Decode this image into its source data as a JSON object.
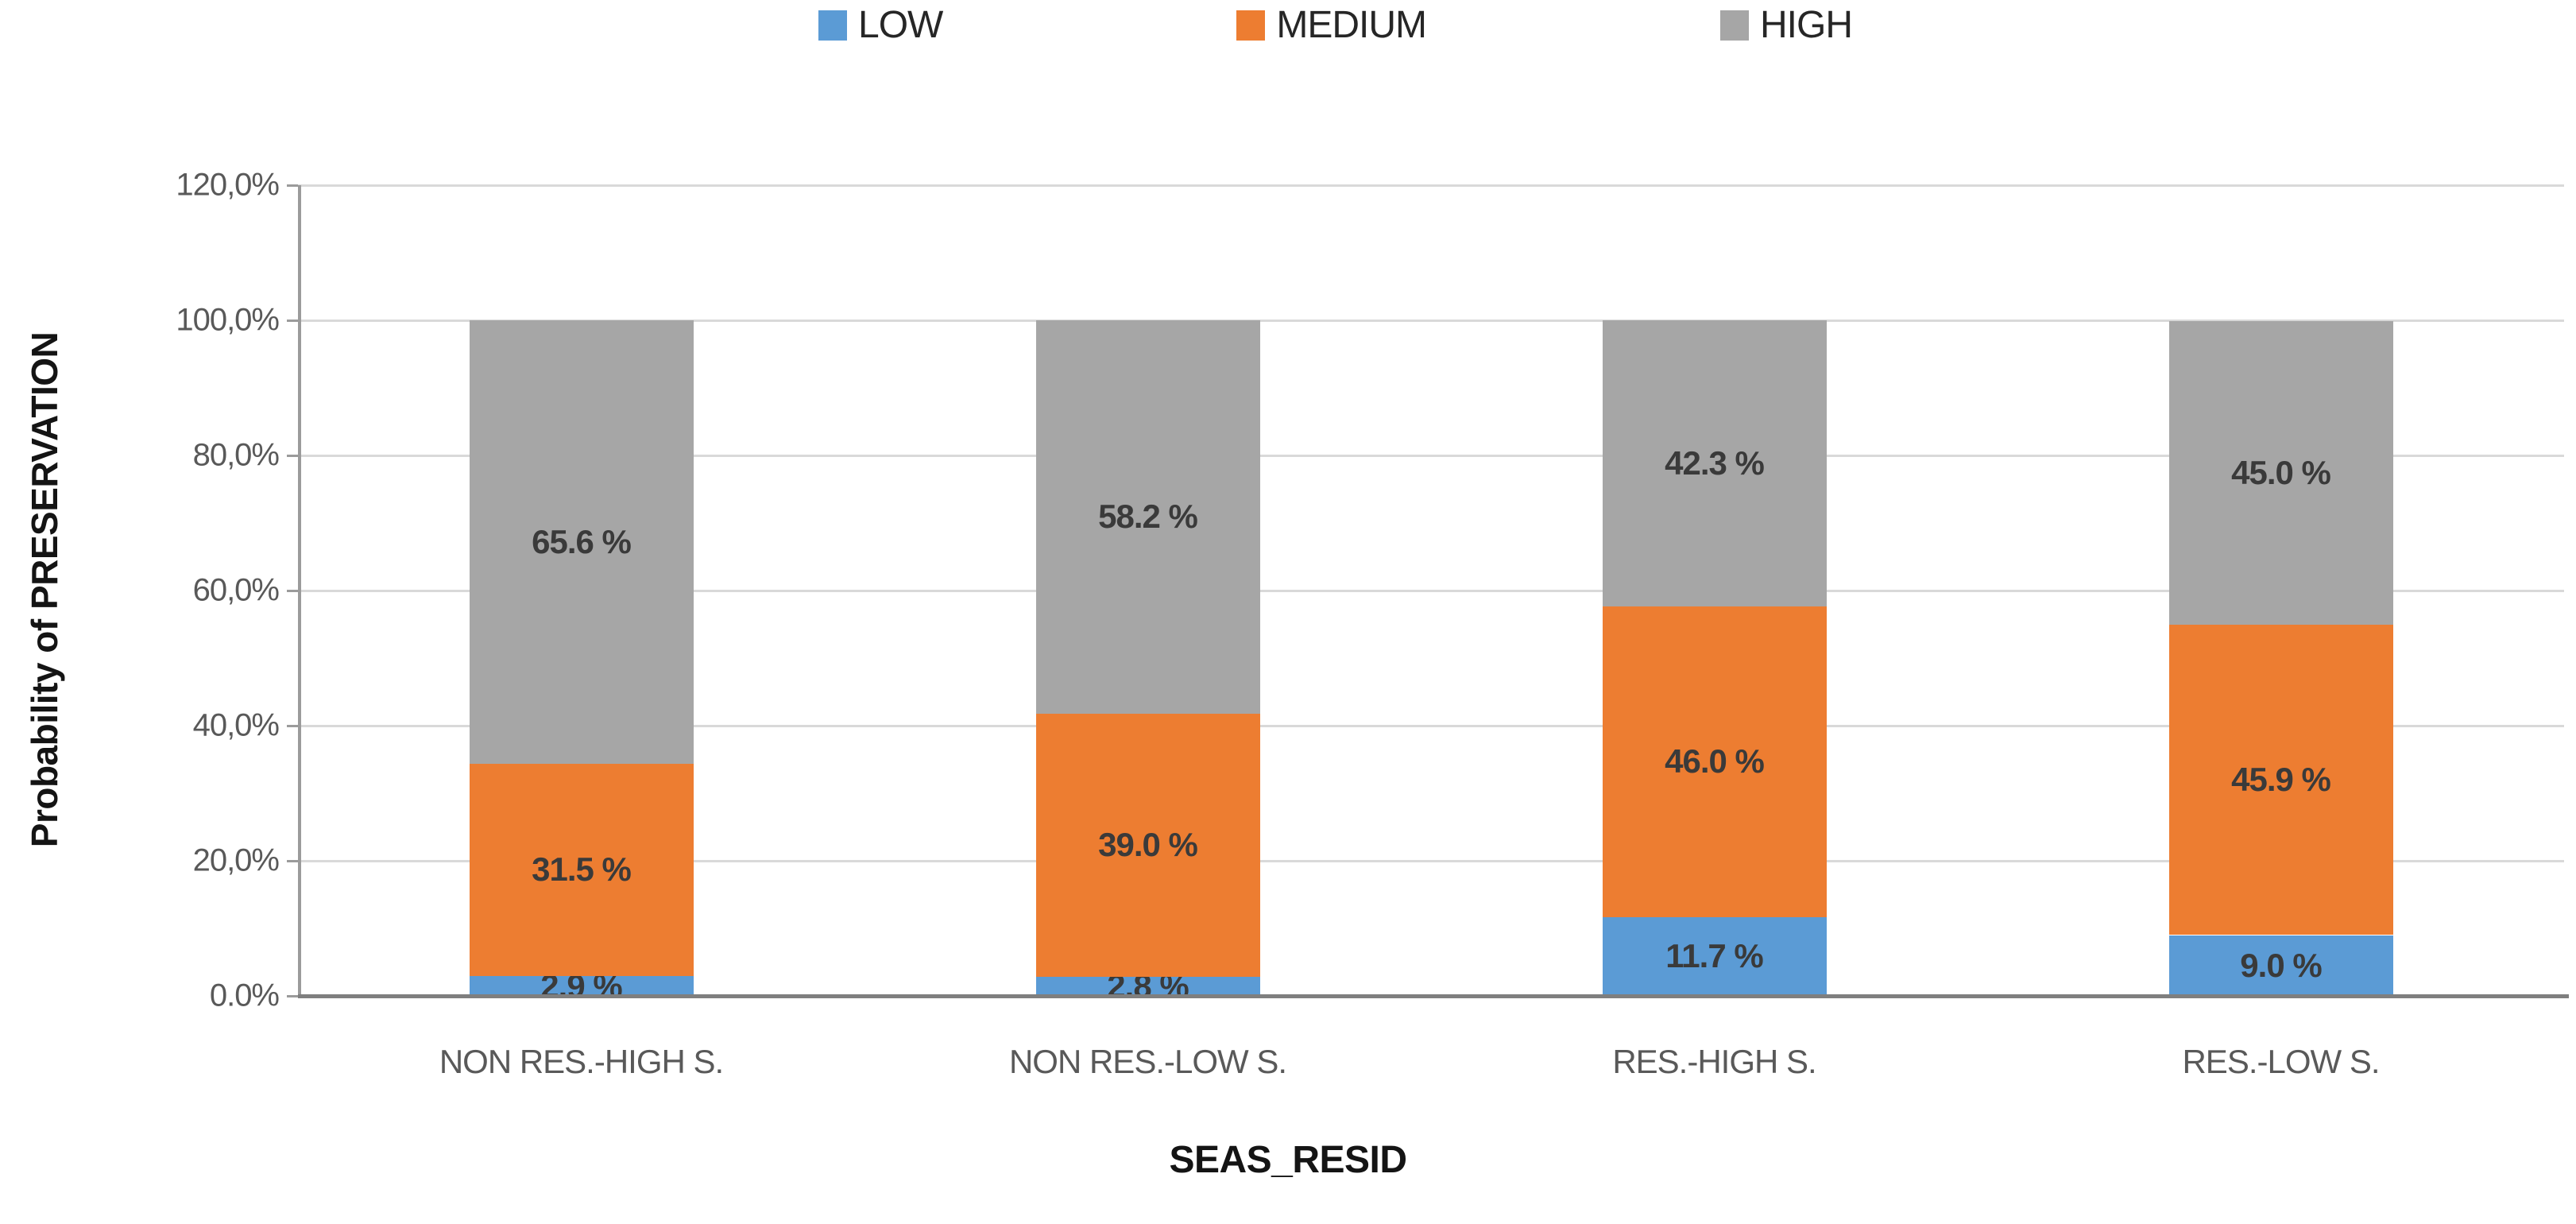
{
  "chart_data": {
    "type": "bar",
    "stacked": true,
    "categories": [
      "NON RES.-HIGH S.",
      "NON RES.-LOW S.",
      "RES.-HIGH S.",
      "RES.-LOW S."
    ],
    "series": [
      {
        "name": "LOW",
        "color": "#5B9BD5",
        "values": [
          2.9,
          2.8,
          11.7,
          9.0
        ],
        "labels": [
          "2.9 %",
          "2.8 %",
          "11.7 %",
          "9.0 %"
        ]
      },
      {
        "name": "MEDIUM",
        "color": "#ED7D31",
        "values": [
          31.5,
          39.0,
          46.0,
          45.9
        ],
        "labels": [
          "31.5 %",
          "39.0 %",
          "46.0 %",
          "45.9 %"
        ]
      },
      {
        "name": "HIGH",
        "color": "#A6A6A6",
        "values": [
          65.6,
          58.2,
          42.3,
          45.0
        ],
        "labels": [
          "65.6 %",
          "58.2 %",
          "42.3 %",
          "45.0 %"
        ]
      }
    ],
    "xlabel": "SEAS_RESID",
    "ylabel": "Probability of PRESERVATION",
    "ylim": [
      0,
      120
    ],
    "ytick_values": [
      120,
      100,
      80,
      60,
      40,
      20,
      0
    ],
    "ytick_labels": [
      "120,0%",
      "100,0%",
      "80,0%",
      "60,0%",
      "40,0%",
      "20,0%",
      "0.0%"
    ],
    "legend_position": "top",
    "grid": true,
    "colors": {
      "gridline": "#D9D9D9",
      "y_axis_line": "#9B9B9B",
      "x_axis_line": "#7F7F7F",
      "tick_label": "#595959",
      "data_label": "#3A3A3A",
      "legend_text": "#262626",
      "axis_title": "#141414"
    }
  }
}
